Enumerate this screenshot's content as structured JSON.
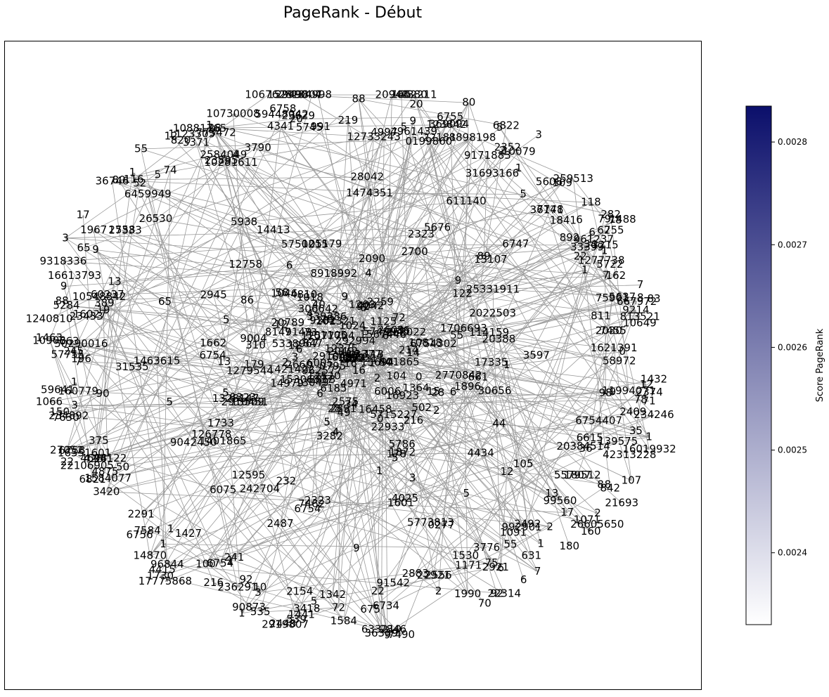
{
  "title": "PageRank - Début",
  "colorbar": {
    "label": "Score PageRank",
    "ticks": [
      "0.0028",
      "0.0027",
      "0.0026",
      "0.0025",
      "0.0024"
    ],
    "color_low": "#ffffff",
    "color_high": "#0b0f6b",
    "range": [
      0.00233,
      0.002835
    ]
  },
  "edge_color": "#9a9a9a",
  "node_labels": [
    "1046",
    "339286",
    "1067628",
    "242704",
    "12",
    "4961439",
    "16923",
    "14870",
    "961237",
    "962577",
    "5715227",
    "245",
    "1024",
    "5608",
    "9004",
    "4434",
    "3790",
    "1584",
    "1584077",
    "84",
    "23895",
    "2154",
    "22181",
    "10079",
    "2374",
    "663",
    "179",
    "2910457",
    "401865",
    "1401865",
    "2323",
    "31535",
    "773472",
    "102321",
    "21693",
    "123842",
    "633219",
    "2910451",
    "4341",
    "3597",
    "1",
    "23433",
    "14413",
    "6755",
    "8149149",
    "6758",
    "96844",
    "6754",
    "9214",
    "2700",
    "1279544",
    "7748",
    "26530",
    "2492",
    "4997",
    "12595",
    "3215",
    "36171",
    "7490",
    "813521",
    "90873",
    "310",
    "5750215",
    "216",
    "6006",
    "1",
    "2945",
    "4698",
    "1277738",
    "13049",
    "1",
    "5722",
    "16",
    "1841",
    "152990",
    "1421422",
    "2487",
    "12758",
    "892",
    "9281",
    "134998",
    "1567446",
    "91542",
    "49",
    "165",
    "4025",
    "1474351",
    "1807",
    "160779",
    "241",
    "5773813",
    "5",
    "65",
    "22",
    "232",
    "16613793",
    "1896",
    "4042",
    "2584049",
    "6005",
    "2660",
    "6754",
    "7462",
    "3776",
    "6185",
    "2030",
    "20388",
    "5676",
    "25",
    "4415",
    "122",
    "10281611",
    "1621391",
    "139575",
    "12577704",
    "1263",
    "5745",
    "31693166",
    "12",
    "5579512",
    "3371",
    "1342",
    "99560",
    "26605650",
    "16019932",
    "126778",
    "22921",
    "5938",
    "6734",
    "2575",
    "4875",
    "6754407",
    "6050",
    "16458",
    "33399",
    "55",
    "1427",
    "5",
    "88",
    "109",
    "6075",
    "10548842",
    "369094",
    "8898198",
    "8853",
    "9318336",
    "10818",
    "6758",
    "1",
    "28",
    "22314",
    "535",
    "3377",
    "44122",
    "20",
    "10881765",
    "28042",
    "2",
    "375",
    "1463",
    "5",
    "30656",
    "252211",
    "17",
    "9",
    "17335",
    "73",
    "100",
    "1",
    "5749945",
    "107",
    "1328147",
    "282",
    "1990",
    "5",
    "92",
    "22933",
    "6822",
    "5",
    "306642",
    "7",
    "36746",
    "2919807",
    "1125",
    "2609",
    "28",
    "2556",
    "1730",
    "4",
    "1733",
    "5",
    "2949807",
    "4",
    "105179",
    "7",
    "2259",
    "150",
    "83",
    "87",
    "20",
    "6",
    "55",
    "1601",
    "7",
    "15509",
    "9",
    "7455",
    "13",
    "79",
    "292994",
    "2891",
    "6821",
    "16551601",
    "16027",
    "119",
    "4",
    "92",
    "2291",
    "2",
    "36339",
    "5338967",
    "114159",
    "4971",
    "992901",
    "8918992",
    "1441",
    "2022503",
    "59641",
    "811",
    "9042450",
    "72",
    "9",
    "13107",
    "90",
    "60237",
    "0199860",
    "160",
    "2921",
    "71",
    "72",
    "9",
    "17333",
    "236291",
    "2558",
    "2049",
    "847",
    "2409",
    "16",
    "1432",
    "42313228",
    "92",
    "12",
    "78",
    "2352",
    "0",
    "70",
    "1",
    "89",
    "19",
    "13",
    "991",
    "20384514",
    "22106905",
    "1463615",
    "15",
    "5",
    "78",
    "98",
    "1066",
    "74",
    "1706693",
    "3418",
    "3",
    "118",
    "10649",
    "219",
    "6756",
    "1018",
    "16",
    "3",
    "262022",
    "55",
    "611140",
    "4810",
    "10730008",
    "6755",
    "1",
    "75",
    "180",
    "25331911",
    "11994071",
    "1171",
    "3420",
    "539",
    "3",
    "50290016",
    "2846",
    "3454",
    "15306337",
    "7002211",
    "20789",
    "6",
    "3",
    "8",
    "7",
    "52",
    "6747",
    "7584",
    "667972",
    "178",
    "35",
    "6754302",
    "104",
    "105",
    "1967",
    "57755",
    "2883",
    "12375",
    "116",
    "1123305",
    "28",
    "6",
    "6",
    "1",
    "661",
    "13",
    "2",
    "1",
    "1662",
    "88",
    "234892",
    "17775868",
    "3",
    "9",
    "216",
    "80",
    "86",
    "3282",
    "6",
    "58972",
    "15694",
    "2323",
    "2",
    "17",
    "1872",
    "101105",
    "502",
    "9171883",
    "234246",
    "12520",
    "8",
    "1091",
    "4",
    "842",
    "2448",
    "44",
    "22",
    "6459949",
    "113",
    "14979",
    "27052",
    "10903",
    "5786",
    "23629",
    "259513",
    "7630",
    "65",
    "2",
    "8",
    "10",
    "5637",
    "8323",
    "6",
    "1364",
    "1488",
    "80",
    "2",
    "9",
    "631",
    "1240810",
    "2770842",
    "75901",
    "12",
    "36",
    "50",
    "40",
    "2",
    "1",
    "162",
    "6754",
    "389",
    "34",
    "196",
    "1071",
    "5284",
    "36",
    "58",
    "675",
    "1338",
    "0795",
    "22",
    "820",
    "0277",
    "59448042",
    "1",
    "1",
    "5",
    "34",
    "0",
    "20943",
    "2090",
    "6615",
    "6",
    "9",
    "5",
    "4380",
    "7",
    "12",
    "6",
    "3",
    "1",
    "6",
    "425",
    "1530",
    "2",
    "1",
    "5",
    "1",
    "9",
    "4",
    "12733243",
    "6",
    "5",
    "3",
    "14",
    "0",
    "214"
  ]
}
